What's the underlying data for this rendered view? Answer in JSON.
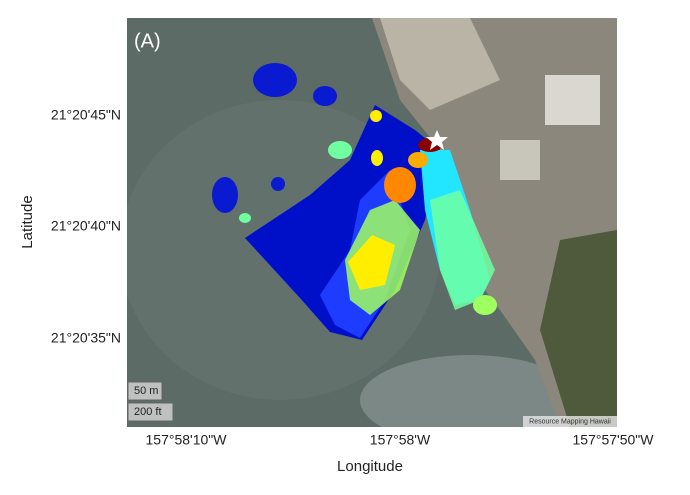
{
  "map": {
    "panel_label": "(A)",
    "x_axis": {
      "label": "Longitude",
      "ticks": [
        "157°58'10\"W",
        "157°58'W",
        "157°57'50\"W"
      ]
    },
    "y_axis": {
      "label": "Latitude",
      "ticks": [
        "21°20'45\"N",
        "21°20'40\"N",
        "21°20'35\"N"
      ]
    },
    "scale_bar": [
      "50 m",
      "200 ft"
    ],
    "attribution": "Resource Mapping Hawaii"
  }
}
